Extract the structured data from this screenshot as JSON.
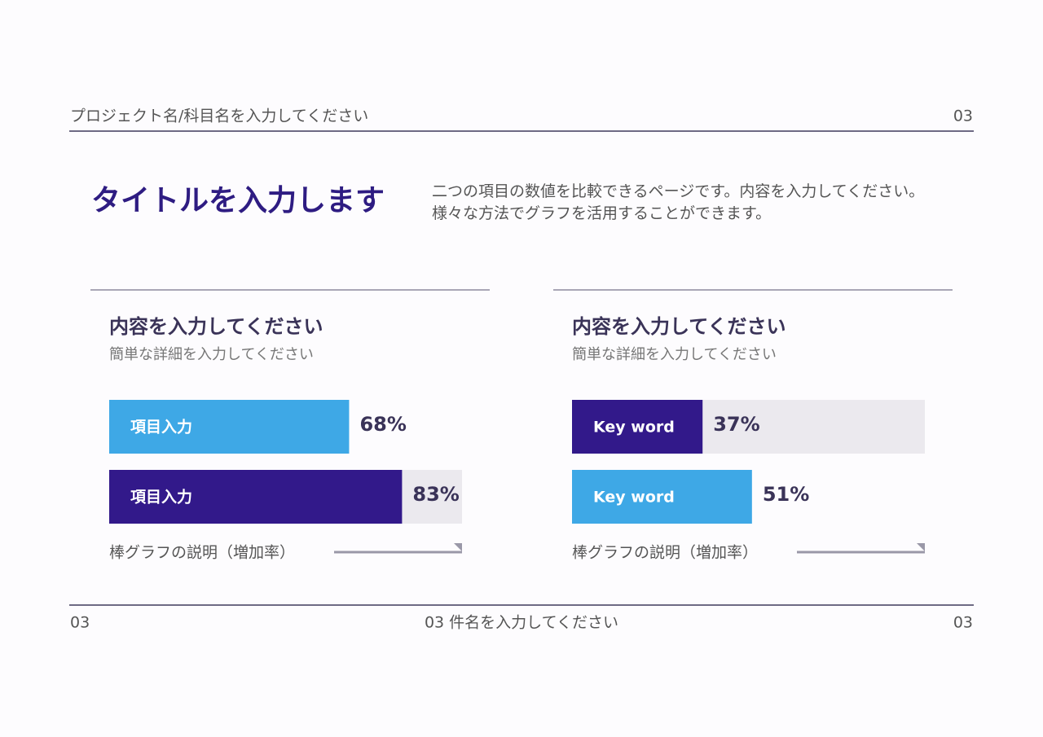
{
  "header": {
    "project": "プロジェクト名/科目名を入力してください",
    "page": "03"
  },
  "title": "タイトルを入力します",
  "description": "二つの項目の数値を比較できるページです。内容を入力してください。様々な方法でグラフを活用することができます。",
  "chart_data": [
    {
      "type": "bar",
      "title": "内容を入力してください",
      "subtitle": "簡単な詳細を入力してください",
      "categories": [
        "項目入力",
        "項目入力"
      ],
      "values": [
        68,
        83
      ],
      "value_labels": [
        "68%",
        "83%"
      ],
      "colors": [
        "#3ea8e6",
        "#32198a"
      ],
      "track": [
        false,
        true
      ],
      "xlim": [
        0,
        100
      ],
      "note": "棒グラフの説明（増加率）"
    },
    {
      "type": "bar",
      "title": "内容を入力してください",
      "subtitle": "簡単な詳細を入力してください",
      "categories": [
        "Key word",
        "Key word"
      ],
      "values": [
        37,
        51
      ],
      "value_labels": [
        "37%",
        "51%"
      ],
      "colors": [
        "#32198a",
        "#3ea8e6"
      ],
      "track": [
        true,
        false
      ],
      "xlim": [
        0,
        100
      ],
      "note": "棒グラフの説明（増加率）"
    }
  ],
  "footer": {
    "left": "03",
    "center": "03 件名を入力してください",
    "right": "03"
  }
}
